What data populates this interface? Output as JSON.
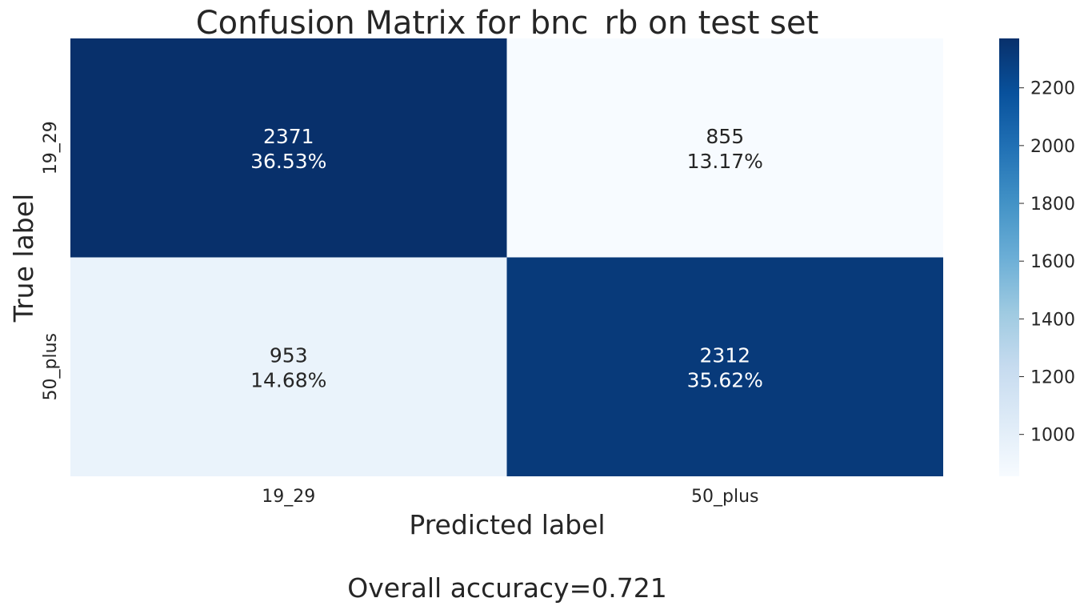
{
  "chart_data": {
    "type": "heatmap",
    "title": "Confusion Matrix for bnc_rb on test set",
    "xlabel": "Predicted label",
    "ylabel": "True label",
    "x_categories": [
      "19_29",
      "50_plus"
    ],
    "y_categories": [
      "19_29",
      "50_plus"
    ],
    "values": [
      [
        2371,
        855
      ],
      [
        953,
        2312
      ]
    ],
    "cell_labels": [
      [
        {
          "count": "2371",
          "percent": "36.53%"
        },
        {
          "count": "855",
          "percent": "13.17%"
        }
      ],
      [
        {
          "count": "953",
          "percent": "14.68%"
        },
        {
          "count": "2312",
          "percent": "35.62%"
        }
      ]
    ],
    "colormap": "Blues",
    "colorbar": {
      "range": [
        855,
        2371
      ],
      "ticks": [
        "1000",
        "1200",
        "1400",
        "1600",
        "1800",
        "2000",
        "2200"
      ]
    },
    "grid": false,
    "footer": "Overall accuracy=0.721"
  }
}
